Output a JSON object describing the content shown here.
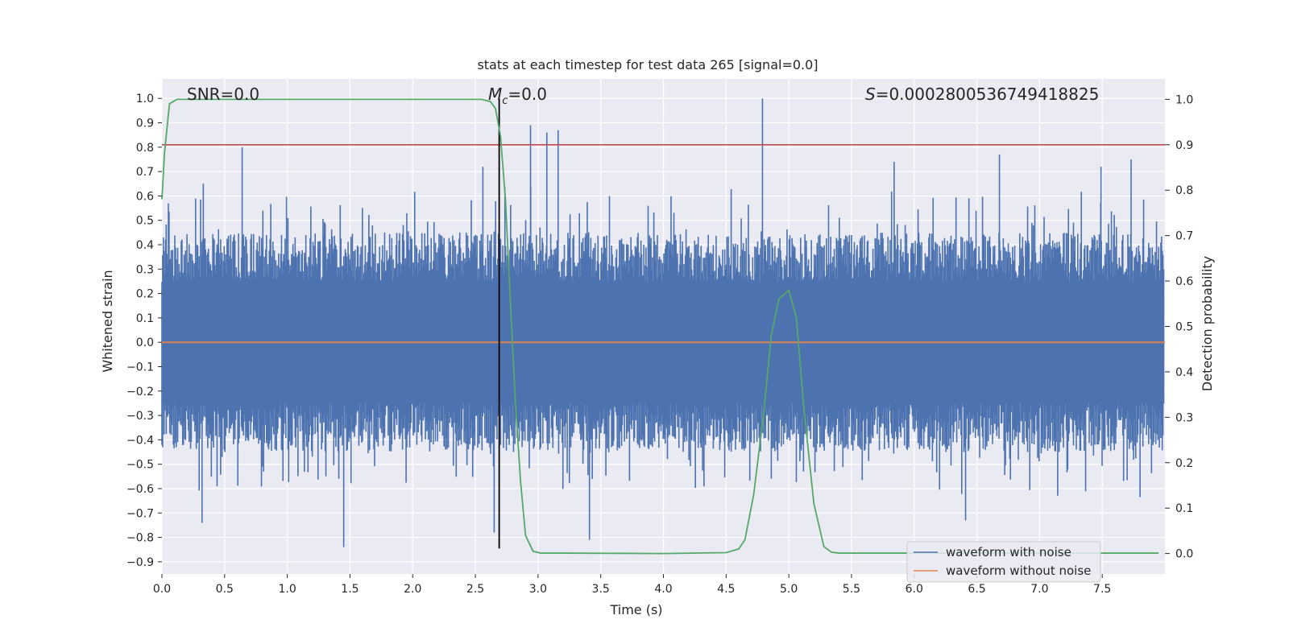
{
  "chart_data": {
    "type": "line",
    "title": "stats at each timestep for test data 265 [signal=0.0]",
    "xlabel": "Time (s)",
    "ylabel": "Whitened strain",
    "y2label": "Detection probability",
    "xlim": [
      0.0,
      8.0
    ],
    "ylim": [
      -0.95,
      1.08
    ],
    "y2lim": [
      -0.045,
      1.045
    ],
    "xticks": [
      "0.0",
      "0.5",
      "1.0",
      "1.5",
      "2.0",
      "2.5",
      "3.0",
      "3.5",
      "4.0",
      "4.5",
      "5.0",
      "5.5",
      "6.0",
      "6.5",
      "7.0",
      "7.5"
    ],
    "yticks": [
      "1.0",
      "0.9",
      "0.8",
      "0.7",
      "0.6",
      "0.5",
      "0.4",
      "0.3",
      "0.2",
      "0.1",
      "0.0",
      "−0.1",
      "−0.2",
      "−0.3",
      "−0.4",
      "−0.5",
      "−0.6",
      "−0.7",
      "−0.8",
      "−0.9"
    ],
    "y2ticks": [
      "1.0",
      "0.9",
      "0.8",
      "0.7",
      "0.6",
      "0.5",
      "0.4",
      "0.3",
      "0.2",
      "0.1",
      "0.0"
    ],
    "annotations": {
      "snr": "SNR=0.0",
      "mc_symbol": "M",
      "mc_sub": "c",
      "mc_value": "=0.0",
      "s_symbol": "S",
      "s_value": "=0.0002800536749418825"
    },
    "threshold": {
      "y2": 0.9,
      "color": "#c44e52"
    },
    "marker_time": 2.69,
    "noise_envelope_peaks": [
      {
        "t": 0.64,
        "v": 0.8
      },
      {
        "t": 0.33,
        "v": 0.65
      },
      {
        "t": 2.56,
        "v": 0.72
      },
      {
        "t": 2.94,
        "v": 0.89
      },
      {
        "t": 3.07,
        "v": 0.86
      },
      {
        "t": 3.16,
        "v": 0.87
      },
      {
        "t": 4.79,
        "v": 1.0
      },
      {
        "t": 5.84,
        "v": 0.74
      },
      {
        "t": 6.68,
        "v": 0.77
      },
      {
        "t": 7.49,
        "v": 0.72
      },
      {
        "t": 7.73,
        "v": 0.75
      },
      {
        "t": 1.45,
        "v": -0.84
      },
      {
        "t": 0.32,
        "v": -0.74
      },
      {
        "t": 3.41,
        "v": -0.81
      },
      {
        "t": 6.41,
        "v": -0.73
      },
      {
        "t": 2.65,
        "v": -0.78
      }
    ],
    "series": [
      {
        "name": "waveform with noise",
        "color": "#4c72b0",
        "envelope": {
          "upper": 0.45,
          "lower": -0.45
        }
      },
      {
        "name": "waveform without noise",
        "color": "#dd8452",
        "values": [
          0.0,
          0.0
        ]
      },
      {
        "name": "detection probability",
        "color": "#55a868",
        "axis": "y2",
        "x": [
          0.0,
          0.02,
          0.06,
          0.12,
          0.2,
          0.5,
          1.0,
          1.5,
          2.0,
          2.4,
          2.55,
          2.62,
          2.66,
          2.7,
          2.74,
          2.78,
          2.82,
          2.86,
          2.9,
          2.96,
          3.02,
          3.2,
          4.0,
          4.5,
          4.6,
          4.65,
          4.72,
          4.8,
          4.86,
          4.92,
          5.0,
          5.06,
          5.12,
          5.2,
          5.28,
          5.34,
          5.4,
          6.0,
          7.0,
          7.95
        ],
        "y": [
          0.78,
          0.88,
          0.99,
          1.0,
          1.0,
          1.0,
          1.0,
          1.0,
          1.0,
          1.0,
          1.0,
          0.995,
          0.98,
          0.92,
          0.78,
          0.55,
          0.33,
          0.16,
          0.04,
          0.005,
          0.001,
          0.001,
          0.0,
          0.002,
          0.01,
          0.03,
          0.13,
          0.31,
          0.48,
          0.56,
          0.58,
          0.52,
          0.32,
          0.11,
          0.015,
          0.003,
          0.001,
          0.001,
          0.001,
          0.001
        ]
      }
    ],
    "legend": {
      "placement": "bottom-right",
      "entries": [
        "waveform with noise",
        "waveform without noise"
      ]
    }
  }
}
